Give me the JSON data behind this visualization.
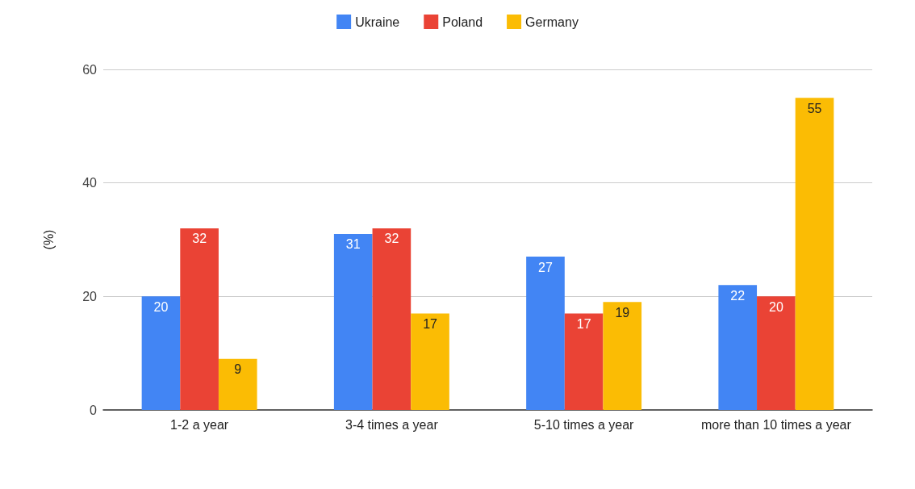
{
  "chart_data": {
    "type": "bar",
    "ylabel": "(%)",
    "categories": [
      "1-2 a year",
      "3-4 times a year",
      "5-10 times a year",
      "more than 10 times a year"
    ],
    "series": [
      {
        "name": "Ukraine",
        "color": "#4285f4",
        "values": [
          20,
          31,
          27,
          22
        ]
      },
      {
        "name": "Poland",
        "color": "#ea4335",
        "values": [
          32,
          32,
          17,
          20
        ]
      },
      {
        "name": "Germany",
        "color": "#fbbc04",
        "values": [
          9,
          17,
          19,
          55
        ]
      }
    ],
    "ylim": [
      0,
      60
    ],
    "yticks": [
      0,
      20,
      40,
      60
    ],
    "grid": "y",
    "legend": "top",
    "data_labels": true
  }
}
